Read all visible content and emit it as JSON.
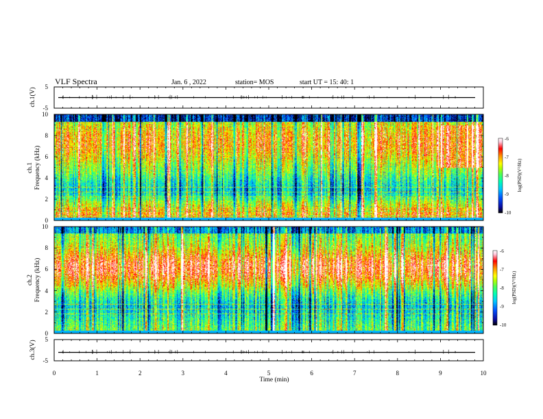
{
  "header": {
    "title": "VLF Spectra",
    "date": "Jan. 6 , 2022",
    "station": "station= MOS",
    "start": "start UT = 15: 40: 1"
  },
  "chart_data": [
    {
      "id": "ch1-voltage",
      "type": "line",
      "ylabel": "ch.1(V)",
      "ylim": [
        -5,
        5
      ],
      "yticks": [
        "5",
        "-5"
      ],
      "xlim": [
        0,
        10
      ],
      "trace_level": 0.0
    },
    {
      "id": "ch1-spectrogram",
      "type": "heatmap",
      "ylabel_top": "ch.1",
      "ylabel": "Frequency (kHz)",
      "ylim": [
        0,
        10
      ],
      "yticks": [
        "0",
        "2",
        "4",
        "6",
        "8",
        "10"
      ],
      "xlim": [
        0,
        10
      ],
      "colorbar": {
        "label": "log(PSD)(V²/Hz)",
        "ticks": [
          "-6",
          "-7",
          "-8",
          "-9",
          "-10"
        ],
        "range": [
          -10,
          -6
        ]
      }
    },
    {
      "id": "ch2-spectrogram",
      "type": "heatmap",
      "ylabel_top": "ch.2",
      "ylabel": "Frequency (kHz)",
      "ylim": [
        0,
        10
      ],
      "yticks": [
        "0",
        "2",
        "4",
        "6",
        "8",
        "10"
      ],
      "xlim": [
        0,
        10
      ],
      "colorbar": {
        "label": "log(PSD)(V²/Hz)",
        "ticks": [
          "-6",
          "-7",
          "-8",
          "-9",
          "-10"
        ],
        "range": [
          -10,
          -6
        ]
      }
    },
    {
      "id": "ch3-voltage",
      "type": "line",
      "ylabel": "ch.3(V)",
      "ylim": [
        -5,
        5
      ],
      "yticks": [
        "5",
        "-5"
      ],
      "xlim": [
        0,
        10
      ],
      "trace_level": -1.0
    }
  ],
  "xaxis": {
    "label": "Time (min)",
    "ticks": [
      "0",
      "1",
      "2",
      "3",
      "4",
      "5",
      "6",
      "7",
      "8",
      "9",
      "10"
    ]
  },
  "colors": {
    "background": "#ffffff",
    "axis": "#000000",
    "colormap": [
      "#000000",
      "#0a0aa0",
      "#0050ff",
      "#00c8ff",
      "#00ffb4",
      "#50ff50",
      "#b4ff00",
      "#ffff00",
      "#ff9600",
      "#ff0000",
      "#ffc8dc",
      "#ffffff"
    ]
  }
}
